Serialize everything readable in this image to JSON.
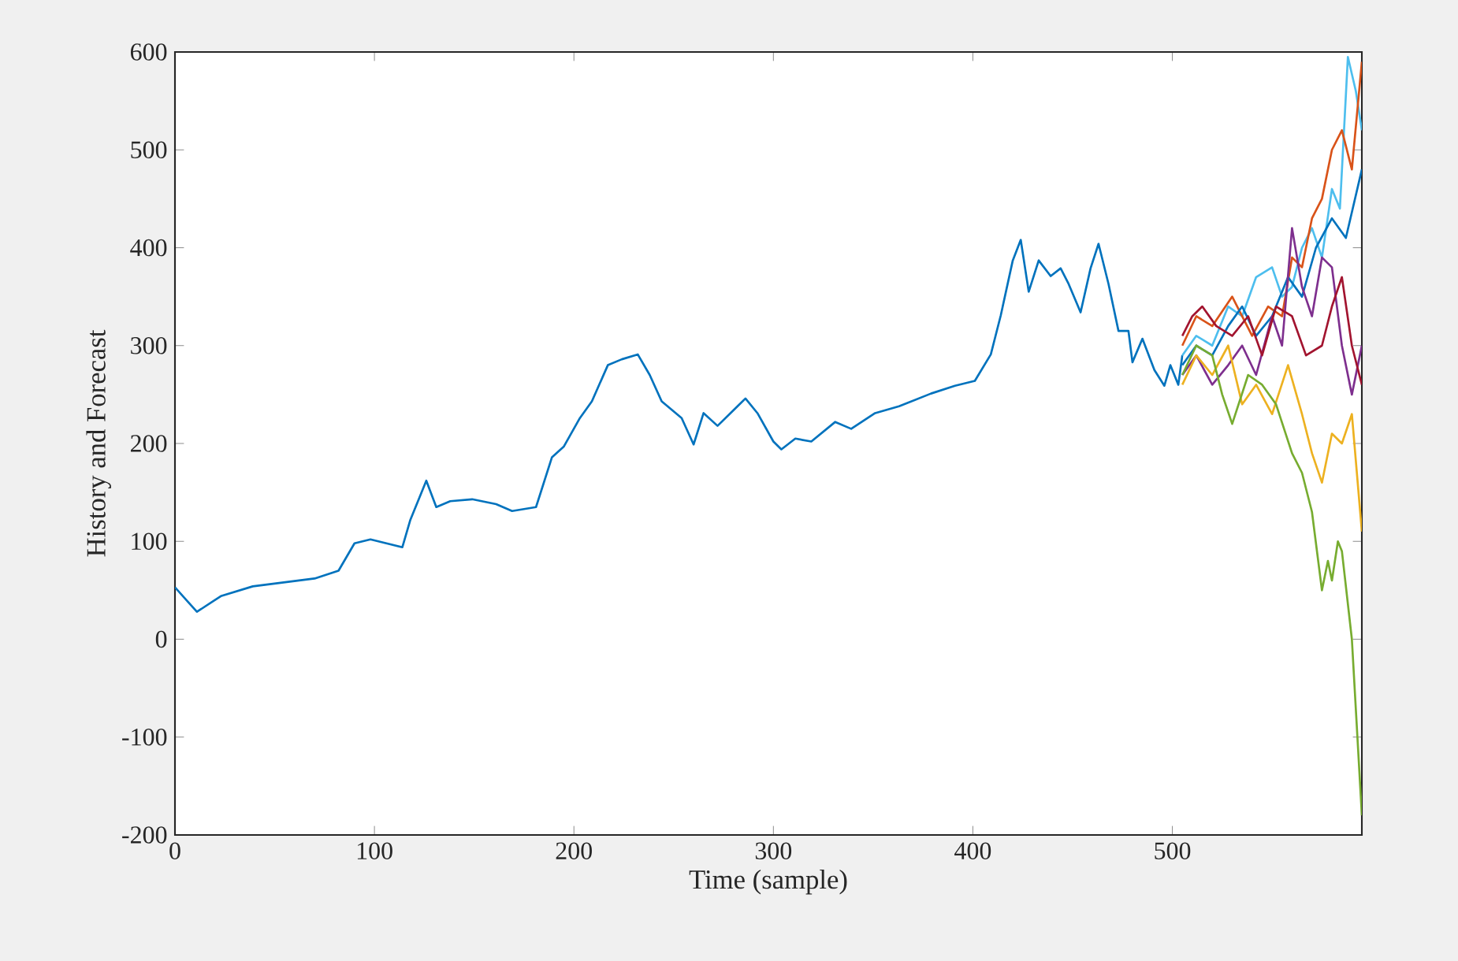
{
  "chart_data": {
    "type": "line",
    "xlabel": "Time (sample)",
    "ylabel": "History and Forecast",
    "xlim": [
      0,
      595
    ],
    "ylim": [
      -200,
      600
    ],
    "xticks": [
      0,
      100,
      200,
      300,
      400,
      500
    ],
    "yticks": [
      -200,
      -100,
      0,
      100,
      200,
      300,
      400,
      500,
      600
    ],
    "marker": "none",
    "line_style": "solid",
    "series": [
      {
        "color": "#0072bd",
        "x": [
          0,
          11,
          23,
          39,
          70,
          82,
          90,
          98,
          106,
          114,
          118,
          126,
          131,
          138,
          149,
          161,
          169,
          181,
          189,
          195,
          203,
          209,
          217,
          224,
          232,
          238,
          244,
          254,
          260,
          265,
          272,
          280,
          286,
          292,
          300,
          304,
          311,
          319,
          331,
          339,
          351,
          363,
          379,
          391,
          401,
          409,
          414,
          420,
          424,
          428,
          433,
          439,
          444,
          448,
          454,
          459,
          463,
          468,
          473,
          478,
          480,
          485,
          491,
          496,
          499,
          503,
          505
        ],
        "values": [
          53,
          28,
          44,
          54,
          62,
          70,
          98,
          102,
          98,
          94,
          122,
          162,
          135,
          141,
          143,
          138,
          131,
          135,
          186,
          197,
          226,
          243,
          280,
          286,
          291,
          270,
          243,
          226,
          199,
          231,
          218,
          234,
          246,
          231,
          202,
          194,
          205,
          202,
          222,
          215,
          231,
          238,
          251,
          259,
          264,
          291,
          331,
          387,
          408,
          355,
          387,
          371,
          379,
          363,
          334,
          379,
          404,
          363,
          315,
          315,
          283,
          307,
          275,
          259,
          280,
          260,
          290
        ]
      },
      {
        "color": "#4dbeee",
        "x": [
          505,
          512,
          520,
          528,
          535,
          542,
          550,
          555,
          560,
          565,
          570,
          575,
          580,
          584,
          588,
          592,
          595
        ],
        "values": [
          290,
          310,
          300,
          340,
          330,
          370,
          380,
          350,
          360,
          400,
          420,
          390,
          460,
          440,
          595,
          560,
          520
        ]
      },
      {
        "color": "#d95319",
        "x": [
          505,
          512,
          520,
          530,
          540,
          548,
          555,
          560,
          565,
          570,
          575,
          580,
          585,
          590,
          595
        ],
        "values": [
          300,
          330,
          320,
          350,
          310,
          340,
          330,
          390,
          380,
          430,
          450,
          500,
          520,
          480,
          590
        ]
      },
      {
        "color": "#0072bd",
        "x": [
          505,
          512,
          520,
          528,
          535,
          542,
          550,
          558,
          565,
          572,
          580,
          587,
          595
        ],
        "values": [
          280,
          300,
          290,
          320,
          340,
          310,
          330,
          370,
          350,
          400,
          430,
          410,
          480
        ]
      },
      {
        "color": "#7e2f8e",
        "x": [
          505,
          512,
          520,
          528,
          535,
          542,
          550,
          555,
          560,
          565,
          570,
          575,
          580,
          585,
          590,
          595
        ],
        "values": [
          270,
          290,
          260,
          280,
          300,
          270,
          330,
          300,
          420,
          360,
          330,
          390,
          380,
          300,
          250,
          300
        ]
      },
      {
        "color": "#a2142f",
        "x": [
          505,
          510,
          515,
          522,
          530,
          538,
          545,
          552,
          560,
          567,
          575,
          580,
          585,
          590,
          595
        ],
        "values": [
          310,
          330,
          340,
          320,
          310,
          330,
          290,
          340,
          330,
          290,
          300,
          340,
          370,
          300,
          260
        ]
      },
      {
        "color": "#edb120",
        "x": [
          505,
          512,
          520,
          528,
          535,
          542,
          550,
          558,
          565,
          570,
          575,
          580,
          585,
          590,
          595
        ],
        "values": [
          260,
          290,
          270,
          300,
          240,
          260,
          230,
          280,
          230,
          190,
          160,
          210,
          200,
          230,
          110
        ]
      },
      {
        "color": "#77ac30",
        "x": [
          505,
          512,
          520,
          525,
          530,
          538,
          545,
          552,
          560,
          565,
          570,
          575,
          578,
          580,
          583,
          585,
          590,
          595
        ],
        "values": [
          270,
          300,
          290,
          250,
          220,
          270,
          260,
          240,
          190,
          170,
          130,
          50,
          80,
          60,
          100,
          90,
          0,
          -180
        ]
      }
    ]
  }
}
